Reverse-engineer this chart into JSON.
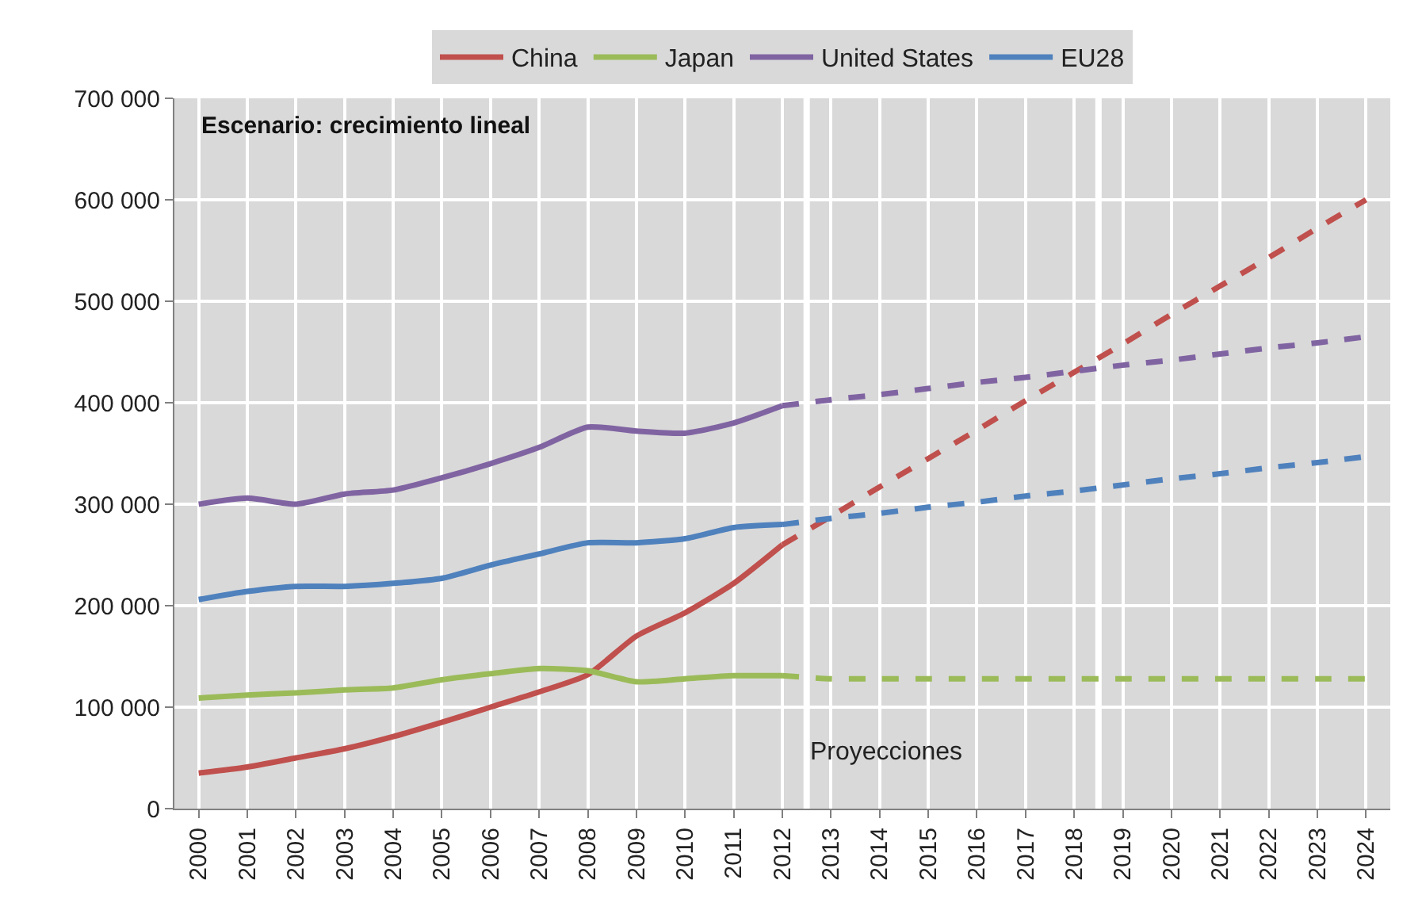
{
  "chart_data": {
    "type": "line",
    "annotations": [
      "Escenario: crecimiento lineal",
      "Proyecciones"
    ],
    "x": [
      2000,
      2001,
      2002,
      2003,
      2004,
      2005,
      2006,
      2007,
      2008,
      2009,
      2010,
      2011,
      2012
    ],
    "series": [
      {
        "name": "China",
        "color": "#c0504d",
        "values": [
          35000,
          41000,
          50000,
          59000,
          71000,
          85000,
          100000,
          115000,
          132000,
          170000,
          193000,
          222000,
          260000
        ]
      },
      {
        "name": "Japan",
        "color": "#9bbb59",
        "values": [
          109000,
          112000,
          114000,
          117000,
          119000,
          127000,
          133000,
          138000,
          136000,
          125000,
          128000,
          131000,
          131000
        ]
      },
      {
        "name": "United States",
        "color": "#8064a2",
        "values": [
          300000,
          306000,
          300000,
          310000,
          314000,
          326000,
          340000,
          356000,
          376000,
          372000,
          370000,
          380000,
          397000
        ]
      },
      {
        "name": "EU28",
        "color": "#4f81bd",
        "values": [
          206000,
          214000,
          219000,
          219000,
          222000,
          227000,
          240000,
          251000,
          262000,
          262000,
          266000,
          277000,
          280000
        ]
      },
      {
        "color": "#c0504d",
        "line_style": "dashed",
        "x": [
          2012,
          2013,
          2014,
          2015,
          2016,
          2017,
          2018,
          2019,
          2020,
          2021,
          2022,
          2023,
          2024
        ],
        "values": [
          260000,
          288000,
          317000,
          345000,
          373000,
          402000,
          430000,
          458000,
          487000,
          515000,
          543000,
          572000,
          600000
        ]
      },
      {
        "color": "#9bbb59",
        "line_style": "dashed",
        "x": [
          2012,
          2013,
          2014,
          2015,
          2016,
          2017,
          2018,
          2019,
          2020,
          2021,
          2022,
          2023,
          2024
        ],
        "values": [
          131000,
          128000,
          128000,
          128000,
          128000,
          128000,
          128000,
          128000,
          128000,
          128000,
          128000,
          128000,
          128000
        ]
      },
      {
        "color": "#8064a2",
        "line_style": "dashed",
        "x": [
          2012,
          2013,
          2014,
          2015,
          2016,
          2017,
          2018,
          2019,
          2020,
          2021,
          2022,
          2023,
          2024
        ],
        "values": [
          397000,
          403000,
          408000,
          414000,
          420000,
          425000,
          431000,
          437000,
          442000,
          448000,
          454000,
          459000,
          465000
        ]
      },
      {
        "color": "#4f81bd",
        "line_style": "dashed",
        "x": [
          2012,
          2013,
          2014,
          2015,
          2016,
          2017,
          2018,
          2019,
          2020,
          2021,
          2022,
          2023,
          2024
        ],
        "values": [
          280000,
          286000,
          291000,
          297000,
          302000,
          308000,
          313000,
          319000,
          325000,
          330000,
          336000,
          341000,
          347000
        ]
      }
    ],
    "xlim": [
      1999.5,
      2024.5
    ],
    "xticks": [
      2000,
      2001,
      2002,
      2003,
      2004,
      2005,
      2006,
      2007,
      2008,
      2009,
      2010,
      2011,
      2012,
      2013,
      2014,
      2015,
      2016,
      2017,
      2018,
      2019,
      2020,
      2021,
      2022,
      2023,
      2024
    ],
    "ylim": [
      0,
      700000
    ],
    "yticks": [
      0,
      {
        "value": 100000,
        "label": "100 000"
      },
      {
        "value": 200000,
        "label": "200 000"
      },
      {
        "value": 300000,
        "label": "300 000"
      },
      {
        "value": 400000,
        "label": "400 000"
      },
      {
        "value": 500000,
        "label": "500 000"
      },
      {
        "value": 600000,
        "label": "600 000"
      },
      {
        "value": 700000,
        "label": "700 000"
      }
    ],
    "ref_lines": [
      {
        "axis": "x",
        "value": 2012.5,
        "color": "#ffffff"
      },
      {
        "axis": "x",
        "value": 2018.5,
        "color": "#ffffff"
      }
    ],
    "grid": true,
    "legend": "top",
    "marker": "none",
    "line_style": "solid"
  }
}
